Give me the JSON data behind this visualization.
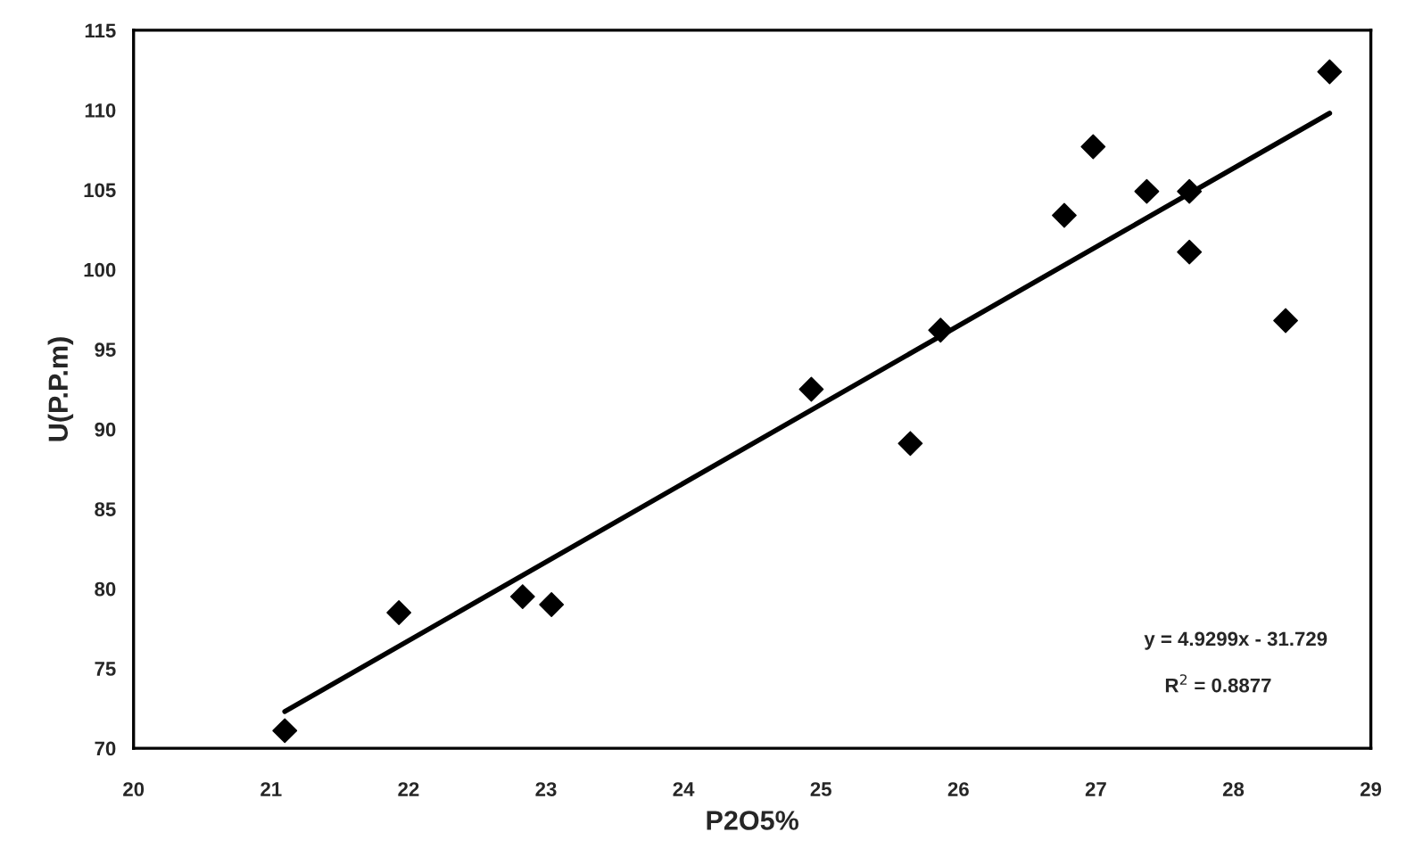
{
  "chart_data": {
    "type": "scatter",
    "xlabel": "P2O5%",
    "ylabel": "U(P.P.m)",
    "series": [
      {
        "color": "#000000",
        "marker": "diamond",
        "x": [
          21.1,
          21.93,
          22.83,
          23.04,
          24.93,
          25.65,
          25.87,
          26.77,
          26.98,
          27.37,
          27.68,
          27.68,
          28.38,
          28.7
        ],
        "values": [
          71.1,
          78.5,
          79.5,
          79.0,
          92.5,
          89.1,
          96.2,
          103.4,
          107.7,
          104.9,
          104.9,
          101.1,
          96.8,
          112.4
        ]
      },
      {
        "type": "line",
        "color": "#000000",
        "marker": "none",
        "x": [
          21.1,
          28.7
        ],
        "values": [
          72.3,
          109.8
        ]
      }
    ],
    "xlim": [
      20,
      29
    ],
    "xticks": [
      20,
      21,
      22,
      23,
      24,
      25,
      26,
      27,
      28,
      29
    ],
    "ylim": [
      70,
      115
    ],
    "yticks": [
      70,
      75,
      80,
      85,
      90,
      95,
      100,
      105,
      110,
      115
    ],
    "grid": false,
    "legend": false,
    "annotations": [
      "y = 4.9299x - 31.729",
      "R$^{2}$ = 0.8877"
    ]
  }
}
